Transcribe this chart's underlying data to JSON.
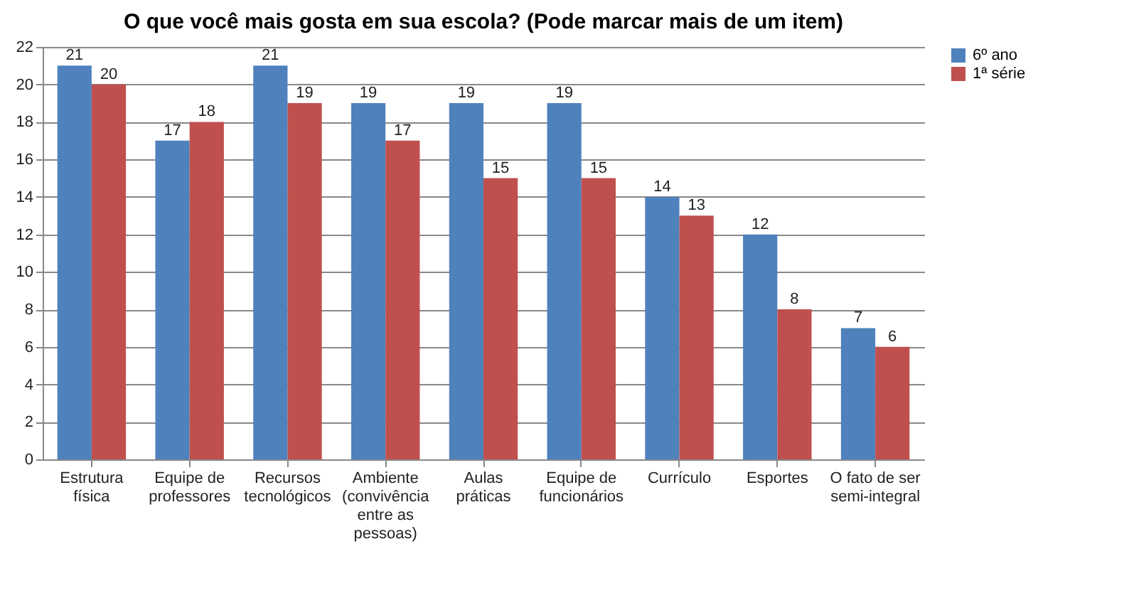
{
  "chart_data": {
    "type": "bar",
    "title": "O que você mais gosta em sua escola? (Pode marcar mais de um item)",
    "categories": [
      "Estrutura física",
      "Equipe de professores",
      "Recursos tecnológicos",
      "Ambiente (convivência entre as pessoas)",
      "Aulas práticas",
      "Equipe de funcionários",
      "Currículo",
      "Esportes",
      "O fato de ser semi-integral"
    ],
    "series": [
      {
        "name": "6º ano",
        "color": "#4f81bd",
        "values": [
          21,
          17,
          21,
          19,
          19,
          19,
          14,
          12,
          7
        ]
      },
      {
        "name": "1ª série",
        "color": "#c0504d",
        "values": [
          20,
          18,
          19,
          17,
          15,
          15,
          13,
          8,
          6
        ]
      }
    ],
    "ylim": [
      0,
      22
    ],
    "yticks": [
      0,
      2,
      4,
      6,
      8,
      10,
      12,
      14,
      16,
      18,
      20,
      22
    ],
    "grid": "y",
    "legend": "right",
    "data_labels": true
  }
}
